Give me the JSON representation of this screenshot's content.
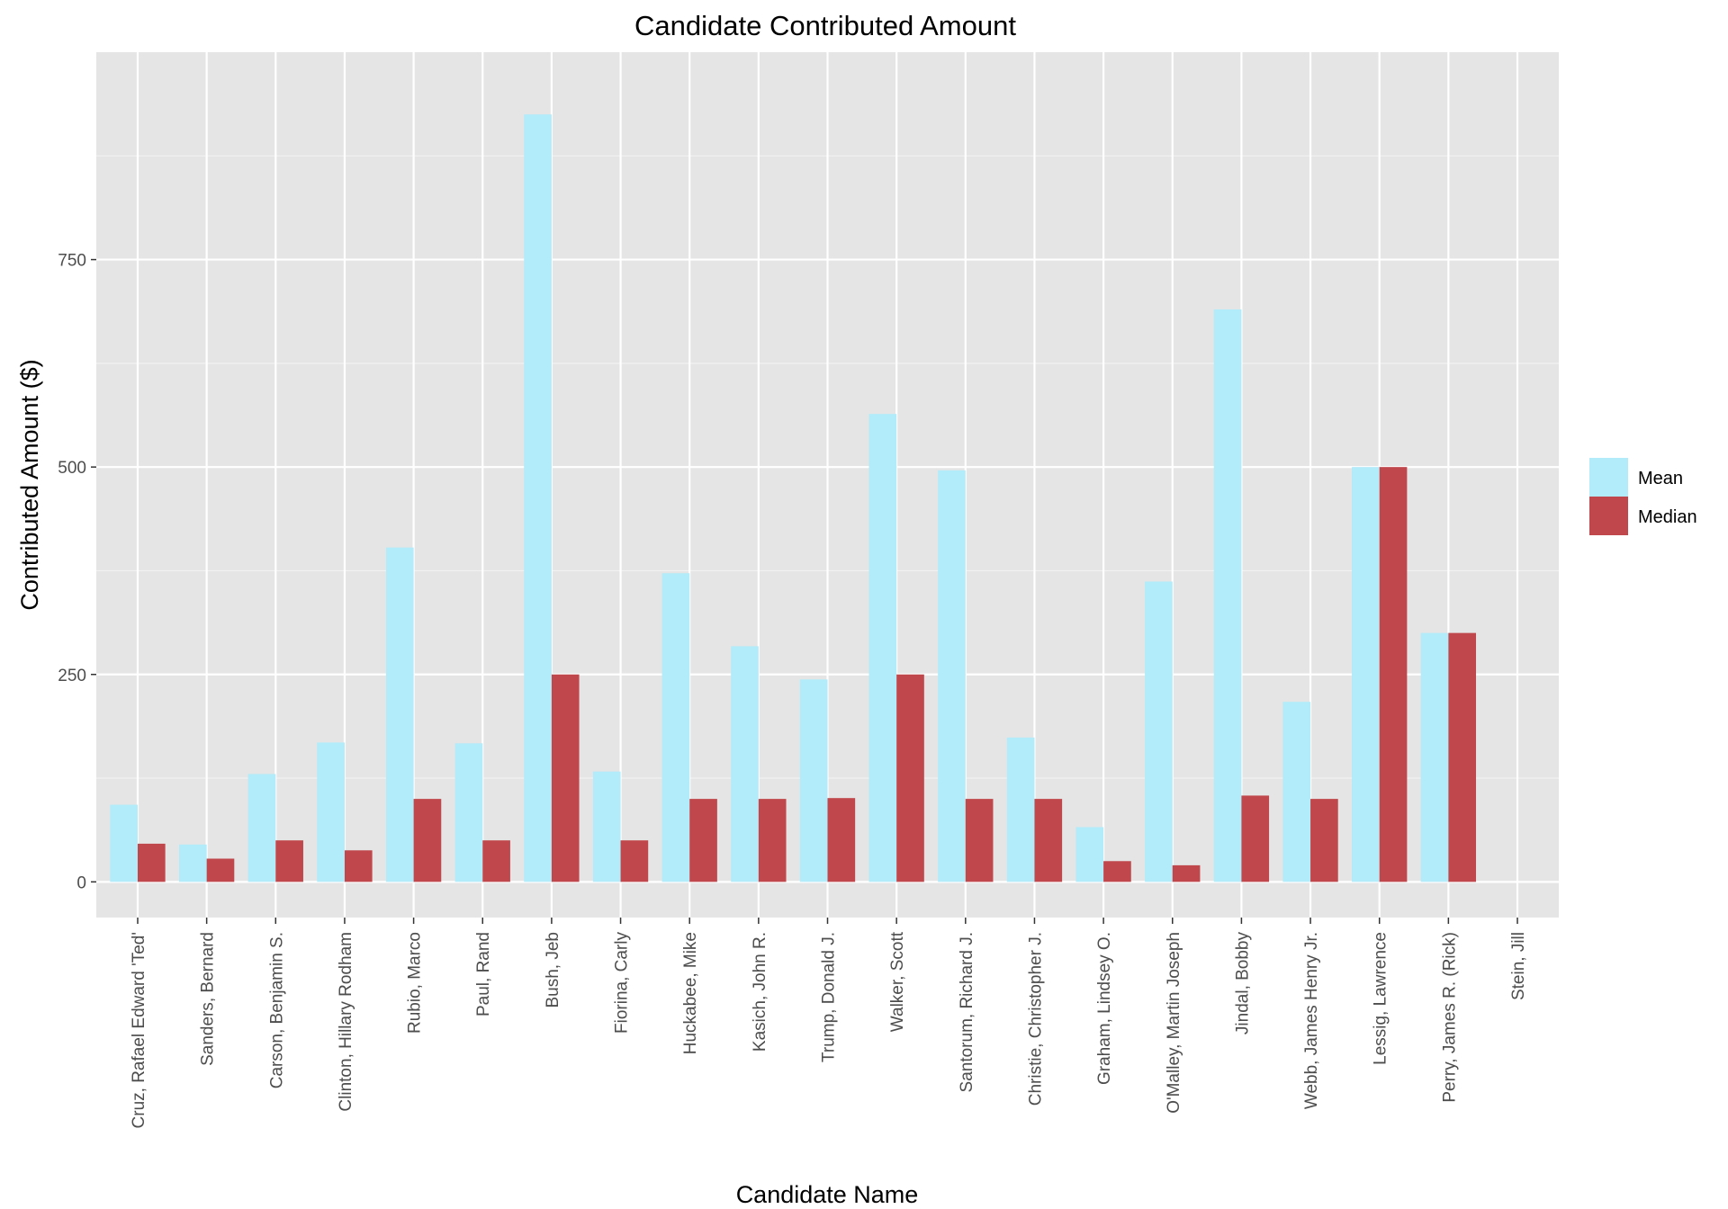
{
  "chart_data": {
    "type": "bar",
    "title": "Candidate Contributed Amount",
    "xlabel": "Candidate Name",
    "ylabel": "Contributed Amount ($)",
    "ylim": [
      -43,
      1000
    ],
    "yticks": [
      0,
      250,
      500,
      750
    ],
    "grid": true,
    "legend_position": "right",
    "categories": [
      "Cruz, Rafael Edward 'Ted'",
      "Sanders, Bernard",
      "Carson, Benjamin S.",
      "Clinton, Hillary Rodham",
      "Rubio, Marco",
      "Paul, Rand",
      "Bush, Jeb",
      "Fiorina, Carly",
      "Huckabee, Mike",
      "Kasich, John R.",
      "Trump, Donald J.",
      "Walker, Scott",
      "Santorum, Richard J.",
      "Christie, Christopher J.",
      "Graham, Lindsey O.",
      "O'Malley, Martin Joseph",
      "Jindal, Bobby",
      "Webb, James Henry Jr.",
      "Lessig, Lawrence",
      "Perry, James R. (Rick)",
      "Stein, Jill"
    ],
    "series": [
      {
        "name": "Mean",
        "color": "#b2ebf9",
        "values": [
          93,
          45,
          130,
          168,
          403,
          167,
          925,
          133,
          372,
          284,
          244,
          564,
          496,
          174,
          66,
          362,
          690,
          217,
          500,
          300,
          0
        ]
      },
      {
        "name": "Median",
        "color": "#c0474b",
        "values": [
          46,
          28,
          50,
          38,
          100,
          50,
          250,
          50,
          100,
          100,
          101,
          250,
          100,
          100,
          25,
          20,
          104,
          100,
          500,
          300,
          0
        ]
      }
    ]
  }
}
